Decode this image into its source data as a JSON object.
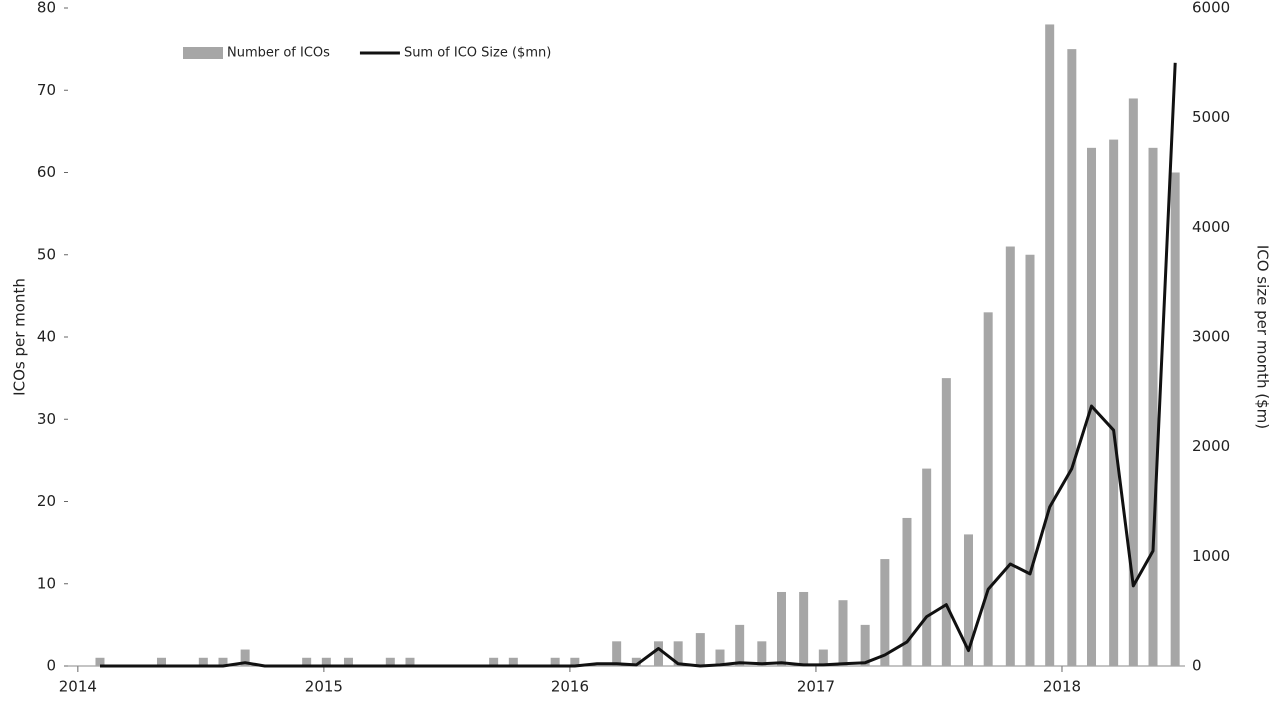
{
  "chart_data": {
    "type": "bar",
    "x": [
      2014.09,
      2014.17,
      2014.26,
      2014.34,
      2014.43,
      2014.51,
      2014.59,
      2014.68,
      2014.76,
      2014.85,
      2014.93,
      2015.01,
      2015.1,
      2015.18,
      2015.27,
      2015.35,
      2015.43,
      2015.52,
      2015.6,
      2015.69,
      2015.77,
      2015.85,
      2015.94,
      2016.02,
      2016.11,
      2016.19,
      2016.27,
      2016.36,
      2016.44,
      2016.53,
      2016.61,
      2016.69,
      2016.78,
      2016.86,
      2016.95,
      2017.03,
      2017.11,
      2017.2,
      2017.28,
      2017.37,
      2017.45,
      2017.53,
      2017.62,
      2017.7,
      2017.79,
      2017.87,
      2017.95,
      2018.04,
      2018.12,
      2018.21,
      2018.29,
      2018.37,
      2018.46
    ],
    "series": [
      {
        "name": "Number of ICOs",
        "type": "bar",
        "color": "#a6a6a6",
        "values": [
          1,
          0,
          0,
          1,
          0,
          1,
          1,
          2,
          0,
          0,
          1,
          1,
          1,
          0,
          1,
          1,
          0,
          0,
          0,
          1,
          1,
          0,
          1,
          1,
          0,
          3,
          1,
          3,
          3,
          4,
          2,
          5,
          3,
          9,
          9,
          2,
          8,
          5,
          13,
          18,
          24,
          35,
          16,
          43,
          51,
          50,
          78,
          75,
          63,
          64,
          69,
          63,
          60
        ]
      },
      {
        "name": "Sum of ICO Size ($mn)",
        "type": "line",
        "axis": "y2",
        "color": "#111111",
        "values": [
          0,
          0,
          0,
          0,
          0,
          0,
          0,
          30,
          0,
          0,
          0,
          0,
          0,
          0,
          0,
          0,
          0,
          0,
          0,
          0,
          0,
          0,
          0,
          0,
          20,
          20,
          10,
          160,
          20,
          0,
          10,
          30,
          20,
          30,
          10,
          10,
          20,
          30,
          100,
          220,
          450,
          560,
          140,
          700,
          930,
          840,
          1450,
          1800,
          2370,
          2150,
          730,
          1050,
          5500
        ]
      }
    ],
    "xlim": [
      2013.96,
      2018.5
    ],
    "xticks": [
      2014,
      2015,
      2016,
      2017,
      2018
    ],
    "ylim": [
      0,
      80
    ],
    "yticks": [
      0,
      10,
      20,
      30,
      40,
      50,
      60,
      70,
      80
    ],
    "y2lim": [
      0,
      6000
    ],
    "y2ticks": [
      0,
      1000,
      2000,
      3000,
      4000,
      5000,
      6000
    ],
    "ylabel": "ICOs per month",
    "y2label": "ICO size per month ($m)",
    "legend": "upper left",
    "grid": false
  }
}
